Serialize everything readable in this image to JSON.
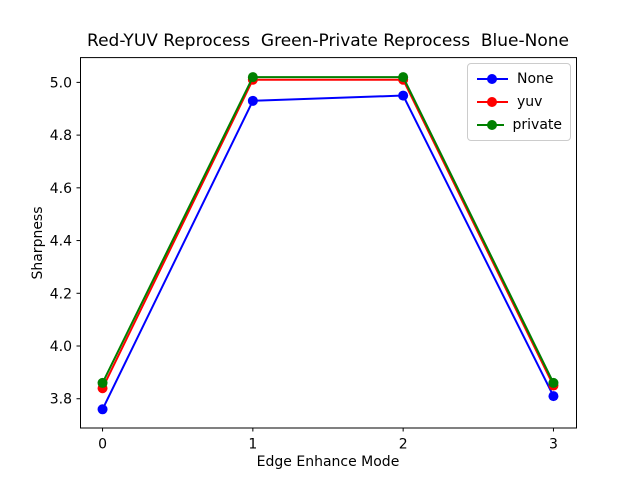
{
  "chart_data": {
    "type": "line",
    "title": "Red-YUV Reprocess  Green-Private Reprocess  Blue-None",
    "xlabel": "Edge Enhance Mode",
    "ylabel": "Sharpness",
    "x": [
      0,
      1,
      2,
      3
    ],
    "series": [
      {
        "name": "None",
        "color": "#0000ff",
        "values": [
          3.76,
          4.93,
          4.95,
          3.81
        ]
      },
      {
        "name": "yuv",
        "color": "#ff0000",
        "values": [
          3.84,
          5.01,
          5.01,
          3.85
        ]
      },
      {
        "name": "private",
        "color": "#008000",
        "values": [
          3.86,
          5.02,
          5.02,
          3.86
        ]
      }
    ],
    "marker": "o",
    "grid": false,
    "legend_position": "upper right",
    "xlim": [
      -0.15,
      3.15
    ],
    "ylim": [
      3.689,
      5.094
    ],
    "xticks": [
      0,
      1,
      2,
      3
    ],
    "xtick_labels": [
      "0",
      "1",
      "2",
      "3"
    ],
    "yticks": [
      3.8,
      4.0,
      4.2,
      4.4,
      4.6,
      4.8,
      5.0
    ],
    "ytick_labels": [
      "3.8",
      "4.0",
      "4.2",
      "4.4",
      "4.6",
      "4.8",
      "5.0"
    ],
    "axis_color": "#000000",
    "background_color": "#ffffff",
    "legend_border_color": "#cccccc"
  }
}
